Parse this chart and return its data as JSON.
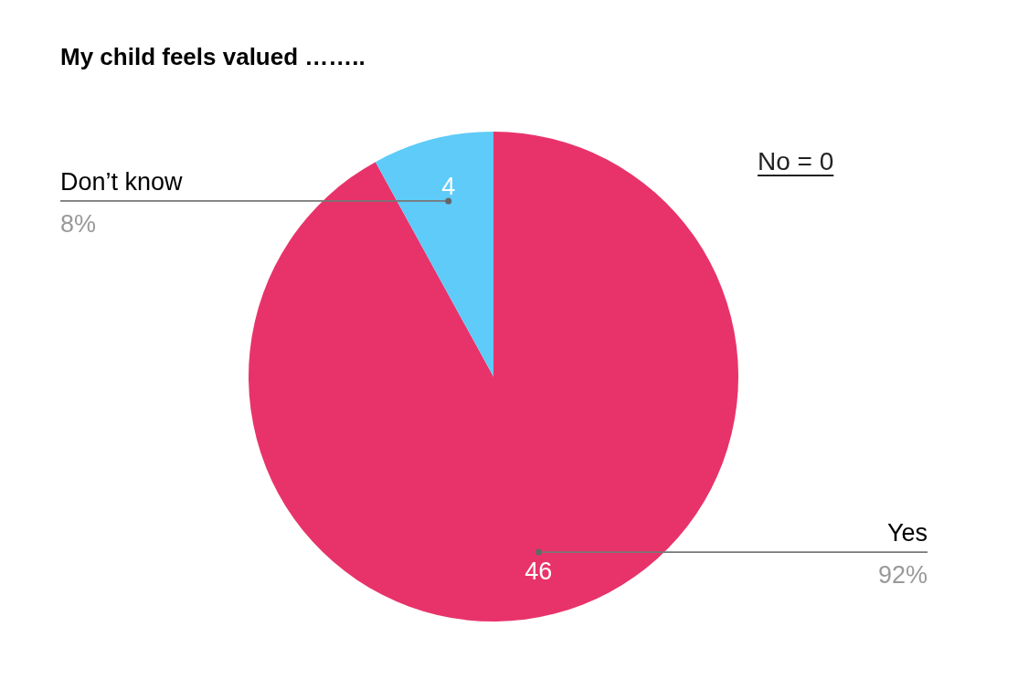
{
  "chart_data": {
    "type": "pie",
    "title": "My child feels valued ……..",
    "categories": [
      "Yes",
      "Don’t know"
    ],
    "values": [
      46,
      4
    ],
    "colors": [
      "#e8336a",
      "#5ecbf9"
    ],
    "data_labels": true,
    "annotations": [
      {
        "text": "92%",
        "x": "Yes"
      },
      {
        "text": "8%",
        "x": "Don’t know"
      },
      "No = 0"
    ]
  }
}
